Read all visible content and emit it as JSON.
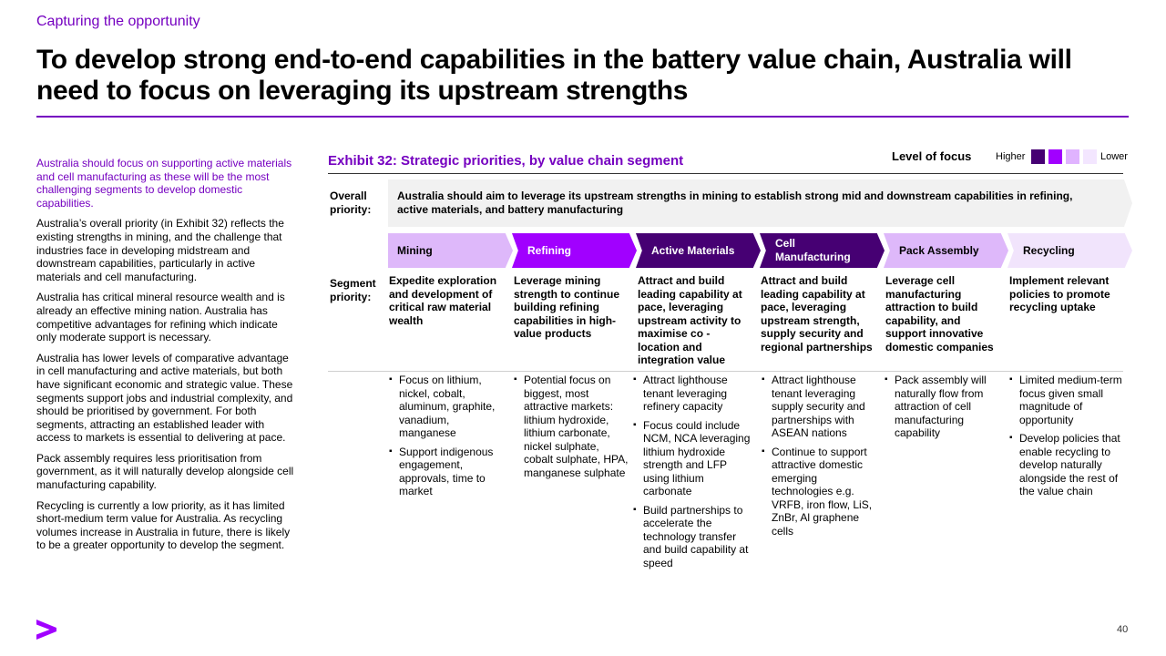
{
  "section_label": "Capturing the opportunity",
  "title": "To develop strong end-to-end capabilities in the battery value chain, Australia will need to focus on leveraging its upstream strengths",
  "sidebar": {
    "intro": "Australia should focus on supporting active materials and cell manufacturing as these will be the most challenging segments to develop domestic capabilities.",
    "paragraphs": [
      "Australia’s overall priority (in Exhibit 32) reflects the existing strengths in mining, and the challenge that industries face in developing midstream and downstream capabilities, particularly in active materials and cell manufacturing.",
      "Australia has critical mineral resource wealth and is already an effective mining nation. Australia has competitive advantages for refining which indicate only moderate support is necessary.",
      "Australia has lower levels of comparative advantage in cell manufacturing and active materials, but both have significant economic and strategic value. These segments support jobs and industrial complexity, and should be prioritised by government. For both segments, attracting an established leader with access to markets is essential to delivering at pace.",
      "Pack assembly requires less prioritisation from government, as it will naturally develop alongside cell manufacturing capability.",
      "Recycling is currently a low priority, as it has limited short-medium term value for Australia. As recycling volumes increase in Australia in future, there is likely to be a greater opportunity to develop the segment."
    ]
  },
  "exhibit": {
    "title": "Exhibit 32: Strategic priorities, by value chain segment",
    "legend": {
      "label": "Level of focus",
      "higher": "Higher",
      "lower": "Lower",
      "swatches": [
        "#460073",
        "#a100ff",
        "#e0b3ff",
        "#f3e6ff"
      ]
    },
    "overall_label": "Overall priority:",
    "overall_text": "Australia should aim to leverage its upstream strengths in mining to establish strong mid and downstream capabilities in refining, active materials, and battery manufacturing",
    "segment_label": "Segment priority:",
    "segments": [
      {
        "name": "Mining",
        "color": "#deb8fa",
        "text_color": "#000000",
        "priority": "Expedite exploration and development of critical raw material wealth",
        "bullets": [
          "Focus on lithium, nickel, cobalt, aluminum, graphite, vanadium, manganese",
          "Support indigenous engagement, approvals, time to market"
        ]
      },
      {
        "name": "Refining",
        "color": "#a100ff",
        "text_color": "#ffffff",
        "priority": "Leverage mining strength to continue building refining capabilities in high-value products",
        "bullets": [
          "Potential focus on biggest, most attractive markets: lithium hydroxide, lithium carbonate, nickel sulphate, cobalt sulphate, HPA, manganese sulphate"
        ]
      },
      {
        "name": "Active Materials",
        "color": "#460073",
        "text_color": "#ffffff",
        "priority": "Attract and build leading capability at pace, leveraging upstream activity to maximise co - location and integration value",
        "bullets": [
          "Attract lighthouse tenant leveraging refinery capacity",
          "Focus could include NCM, NCA leveraging lithium hydroxide strength and LFP using lithium carbonate",
          "Build partnerships to accelerate the technology transfer and build capability at speed"
        ]
      },
      {
        "name": "Cell Manufacturing",
        "color": "#460073",
        "text_color": "#ffffff",
        "priority": "Attract and build leading capability at pace, leveraging upstream strength, supply security and regional partnerships",
        "bullets": [
          "Attract lighthouse tenant leveraging supply security and partnerships with ASEAN nations",
          "Continue to support attractive domestic emerging technologies e.g. VRFB, iron flow, LiS, ZnBr, Al graphene cells"
        ]
      },
      {
        "name": "Pack Assembly",
        "color": "#deb8fa",
        "text_color": "#000000",
        "priority": "Leverage cell manufacturing attraction to build capability, and support innovative domestic companies",
        "bullets": [
          "Pack assembly will naturally flow from attraction of cell manufacturing capability"
        ]
      },
      {
        "name": "Recycling",
        "color": "#f1e4fc",
        "text_color": "#000000",
        "priority": "Implement relevant policies to promote recycling uptake",
        "bullets": [
          "Limited medium-term focus given small magnitude of opportunity",
          "Develop policies that enable recycling to develop naturally alongside the rest of the value chain"
        ]
      }
    ]
  },
  "footer": {
    "logo_icon": "greater-than-logo-icon",
    "page_number": "40"
  }
}
